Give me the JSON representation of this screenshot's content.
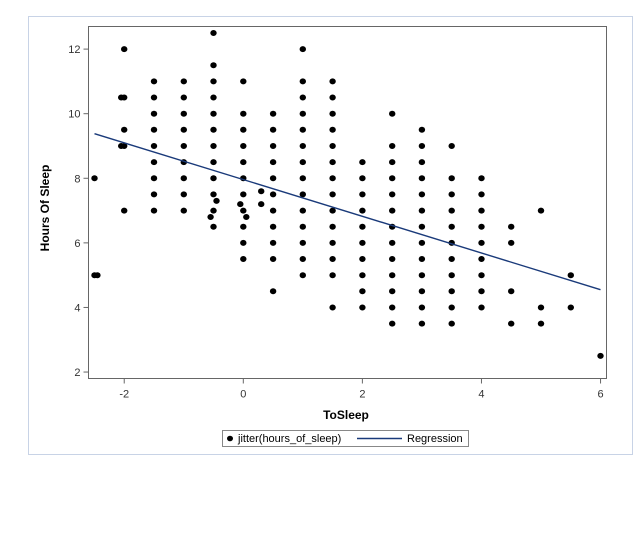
{
  "chart_data": {
    "type": "scatter",
    "xlabel": "ToSleep",
    "ylabel": "Hours Of Sleep",
    "xlim": [
      -2.6,
      6.1
    ],
    "ylim": [
      1.8,
      12.7
    ],
    "x_ticks": [
      "-2",
      "0",
      "2",
      "4",
      "6"
    ],
    "y_ticks": [
      "2",
      "4",
      "6",
      "8",
      "10",
      "12"
    ],
    "grid": false,
    "legend_position": "bottom",
    "colors": {
      "points": "#000000",
      "regression": "#1a3a7a",
      "frame": "#c8d3e6"
    },
    "series": [
      {
        "name": "jitter(hours_of_sleep)",
        "kind": "scatter",
        "points": [
          [
            -2.5,
            8
          ],
          [
            -2.5,
            5
          ],
          [
            -2.45,
            5
          ],
          [
            -2,
            12
          ],
          [
            -2,
            10.5
          ],
          [
            -2,
            9.5
          ],
          [
            -2,
            9
          ],
          [
            -2,
            7
          ],
          [
            -2.05,
            10.5
          ],
          [
            -2.05,
            9
          ],
          [
            -1.5,
            11
          ],
          [
            -1.5,
            10.5
          ],
          [
            -1.5,
            10
          ],
          [
            -1.5,
            9.5
          ],
          [
            -1.5,
            9
          ],
          [
            -1.5,
            8.5
          ],
          [
            -1.5,
            8
          ],
          [
            -1.5,
            7.5
          ],
          [
            -1.5,
            7
          ],
          [
            -1,
            11
          ],
          [
            -1,
            10.5
          ],
          [
            -1,
            10
          ],
          [
            -1,
            9.5
          ],
          [
            -1,
            9
          ],
          [
            -1,
            8.5
          ],
          [
            -1,
            8
          ],
          [
            -1,
            7.5
          ],
          [
            -1,
            7
          ],
          [
            -0.5,
            12.5
          ],
          [
            -0.5,
            11.5
          ],
          [
            -0.5,
            11
          ],
          [
            -0.5,
            10.5
          ],
          [
            -0.5,
            10
          ],
          [
            -0.5,
            9.5
          ],
          [
            -0.5,
            9
          ],
          [
            -0.5,
            8.5
          ],
          [
            -0.5,
            8
          ],
          [
            -0.5,
            7.5
          ],
          [
            -0.5,
            7
          ],
          [
            -0.5,
            6.5
          ],
          [
            -0.45,
            7.3
          ],
          [
            -0.55,
            6.8
          ],
          [
            0,
            11
          ],
          [
            0,
            10
          ],
          [
            0,
            9.5
          ],
          [
            0,
            9
          ],
          [
            0,
            8.5
          ],
          [
            0,
            8
          ],
          [
            0,
            7.5
          ],
          [
            0,
            7
          ],
          [
            0,
            6.5
          ],
          [
            0,
            6
          ],
          [
            0,
            5.5
          ],
          [
            0.05,
            6.8
          ],
          [
            -0.05,
            7.2
          ],
          [
            0.3,
            7.6
          ],
          [
            0.3,
            7.2
          ],
          [
            0.5,
            10
          ],
          [
            0.5,
            9.5
          ],
          [
            0.5,
            9
          ],
          [
            0.5,
            8.5
          ],
          [
            0.5,
            8
          ],
          [
            0.5,
            7.5
          ],
          [
            0.5,
            7
          ],
          [
            0.5,
            6.5
          ],
          [
            0.5,
            6
          ],
          [
            0.5,
            5.5
          ],
          [
            0.5,
            4.5
          ],
          [
            1,
            12
          ],
          [
            1,
            11
          ],
          [
            1,
            10.5
          ],
          [
            1,
            10
          ],
          [
            1,
            9.5
          ],
          [
            1,
            9
          ],
          [
            1,
            8.5
          ],
          [
            1,
            8
          ],
          [
            1,
            7.5
          ],
          [
            1,
            7
          ],
          [
            1,
            6.5
          ],
          [
            1,
            6
          ],
          [
            1,
            5.5
          ],
          [
            1,
            5
          ],
          [
            1.5,
            11
          ],
          [
            1.5,
            10.5
          ],
          [
            1.5,
            10
          ],
          [
            1.5,
            9.5
          ],
          [
            1.5,
            9
          ],
          [
            1.5,
            8.5
          ],
          [
            1.5,
            8
          ],
          [
            1.5,
            7.5
          ],
          [
            1.5,
            7
          ],
          [
            1.5,
            6.5
          ],
          [
            1.5,
            6
          ],
          [
            1.5,
            5.5
          ],
          [
            1.5,
            5
          ],
          [
            1.5,
            4
          ],
          [
            2,
            8.5
          ],
          [
            2,
            8
          ],
          [
            2,
            7.5
          ],
          [
            2,
            7
          ],
          [
            2,
            6.5
          ],
          [
            2,
            6
          ],
          [
            2,
            5.5
          ],
          [
            2,
            5
          ],
          [
            2,
            4.5
          ],
          [
            2,
            4
          ],
          [
            2.5,
            10
          ],
          [
            2.5,
            9
          ],
          [
            2.5,
            8.5
          ],
          [
            2.5,
            8
          ],
          [
            2.5,
            7.5
          ],
          [
            2.5,
            7
          ],
          [
            2.5,
            6.5
          ],
          [
            2.5,
            6
          ],
          [
            2.5,
            5.5
          ],
          [
            2.5,
            5
          ],
          [
            2.5,
            4.5
          ],
          [
            2.5,
            4
          ],
          [
            2.5,
            3.5
          ],
          [
            3,
            9.5
          ],
          [
            3,
            9
          ],
          [
            3,
            8.5
          ],
          [
            3,
            8
          ],
          [
            3,
            7.5
          ],
          [
            3,
            7
          ],
          [
            3,
            6.5
          ],
          [
            3,
            6
          ],
          [
            3,
            5.5
          ],
          [
            3,
            5
          ],
          [
            3,
            4.5
          ],
          [
            3,
            4
          ],
          [
            3,
            3.5
          ],
          [
            3.5,
            9
          ],
          [
            3.5,
            8
          ],
          [
            3.5,
            7.5
          ],
          [
            3.5,
            7
          ],
          [
            3.5,
            6.5
          ],
          [
            3.5,
            6
          ],
          [
            3.5,
            5.5
          ],
          [
            3.5,
            5
          ],
          [
            3.5,
            4.5
          ],
          [
            3.5,
            4
          ],
          [
            3.5,
            3.5
          ],
          [
            4,
            8
          ],
          [
            4,
            7.5
          ],
          [
            4,
            7
          ],
          [
            4,
            6.5
          ],
          [
            4,
            6
          ],
          [
            4,
            5.5
          ],
          [
            4,
            5
          ],
          [
            4,
            4.5
          ],
          [
            4,
            4
          ],
          [
            4.5,
            6.5
          ],
          [
            4.5,
            6
          ],
          [
            4.5,
            4.5
          ],
          [
            4.5,
            3.5
          ],
          [
            5,
            7
          ],
          [
            5,
            4
          ],
          [
            5,
            3.5
          ],
          [
            5.5,
            5
          ],
          [
            5.5,
            4
          ],
          [
            6,
            2.5
          ]
        ]
      },
      {
        "name": "Regression",
        "kind": "line",
        "points": [
          [
            -2.5,
            9.38
          ],
          [
            6,
            4.55
          ]
        ]
      }
    ]
  }
}
